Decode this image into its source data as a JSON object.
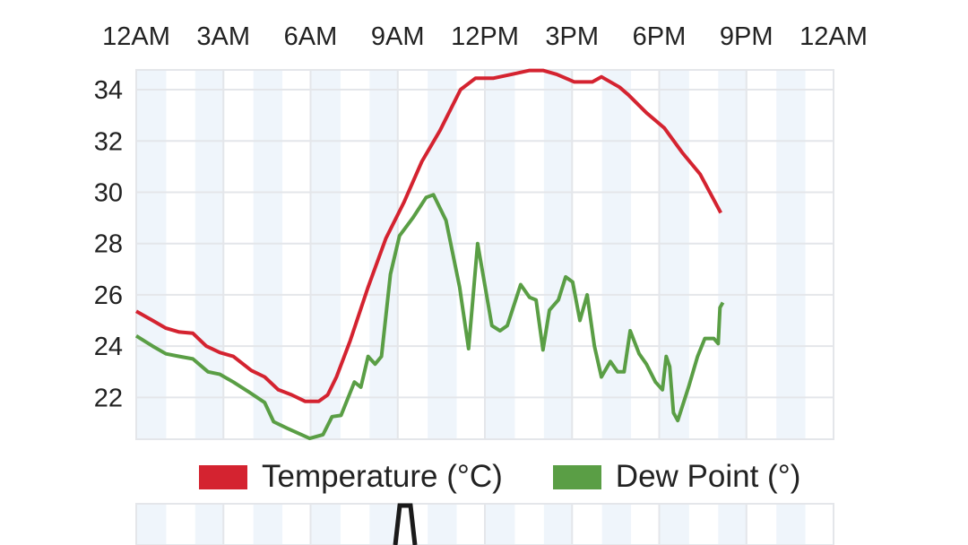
{
  "chart_data": {
    "type": "line",
    "title": "",
    "xlabel": "",
    "ylabel": "",
    "x_unit": "hours since 12AM",
    "xlim": [
      0,
      24
    ],
    "ylim": [
      20.37,
      34.77
    ],
    "x_ticks": [
      {
        "value": 0,
        "label": "12AM"
      },
      {
        "value": 3,
        "label": "3AM"
      },
      {
        "value": 6,
        "label": "6AM"
      },
      {
        "value": 9,
        "label": "9AM"
      },
      {
        "value": 12,
        "label": "12PM"
      },
      {
        "value": 15,
        "label": "3PM"
      },
      {
        "value": 18,
        "label": "6PM"
      },
      {
        "value": 21,
        "label": "9PM"
      },
      {
        "value": 24,
        "label": "12AM"
      }
    ],
    "y_ticks": [
      22,
      24,
      26,
      28,
      30,
      32,
      34
    ],
    "grid": true,
    "legend_position": "bottom",
    "series": [
      {
        "name": "Temperature (°C)",
        "color": "#d42330",
        "x": [
          0,
          0.56,
          1.02,
          1.48,
          1.95,
          2.41,
          2.88,
          3.34,
          3.96,
          4.42,
          4.89,
          5.35,
          5.81,
          6.28,
          6.59,
          6.89,
          7.36,
          7.98,
          8.59,
          9.21,
          9.83,
          10.45,
          11.16,
          11.68,
          12.3,
          12.92,
          13.54,
          14.0,
          14.47,
          15.08,
          15.7,
          16.01,
          16.63,
          16.94,
          17.56,
          18.18,
          18.79,
          19.41,
          20.12
        ],
        "values": [
          25.36,
          25.0,
          24.7,
          24.55,
          24.5,
          24.0,
          23.75,
          23.6,
          23.05,
          22.8,
          22.3,
          22.1,
          21.85,
          21.85,
          22.1,
          22.8,
          24.2,
          26.3,
          28.2,
          29.6,
          31.2,
          32.4,
          34.0,
          34.45,
          34.45,
          34.6,
          34.75,
          34.75,
          34.6,
          34.3,
          34.3,
          34.5,
          34.1,
          33.8,
          33.1,
          32.5,
          31.55,
          30.7,
          29.2
        ]
      },
      {
        "name": "Dew Point (°)",
        "color": "#5a9e45",
        "x": [
          0,
          0.56,
          1.02,
          1.48,
          1.95,
          2.47,
          2.88,
          3.34,
          3.89,
          4.42,
          4.73,
          5.19,
          5.97,
          6.43,
          6.74,
          7.05,
          7.51,
          7.73,
          7.98,
          8.22,
          8.44,
          8.75,
          9.06,
          9.52,
          9.98,
          10.23,
          10.66,
          11.13,
          11.44,
          11.75,
          12.24,
          12.52,
          12.77,
          13.23,
          13.54,
          13.76,
          14.0,
          14.22,
          14.53,
          14.78,
          15.02,
          15.27,
          15.52,
          15.77,
          16.01,
          16.32,
          16.57,
          16.79,
          17.0,
          17.31,
          17.56,
          17.87,
          18.11,
          18.24,
          18.36,
          18.49,
          18.64,
          19.01,
          19.32,
          19.57,
          19.88,
          20.03,
          20.09,
          20.19
        ],
        "values": [
          24.4,
          24.0,
          23.7,
          23.6,
          23.5,
          23.0,
          22.9,
          22.6,
          22.2,
          21.8,
          21.05,
          20.8,
          20.4,
          20.55,
          21.25,
          21.3,
          22.6,
          22.4,
          23.6,
          23.3,
          23.6,
          26.8,
          28.3,
          29.0,
          29.8,
          29.9,
          28.9,
          26.3,
          23.9,
          28.0,
          24.8,
          24.6,
          24.8,
          26.4,
          25.9,
          25.8,
          23.85,
          25.4,
          25.8,
          26.7,
          26.5,
          25.0,
          26.0,
          24.0,
          22.8,
          23.4,
          23.0,
          23.0,
          24.6,
          23.7,
          23.3,
          22.6,
          22.3,
          23.6,
          23.2,
          21.4,
          21.1,
          22.4,
          23.6,
          24.3,
          24.3,
          24.1,
          25.5,
          25.7
        ]
      }
    ]
  }
}
